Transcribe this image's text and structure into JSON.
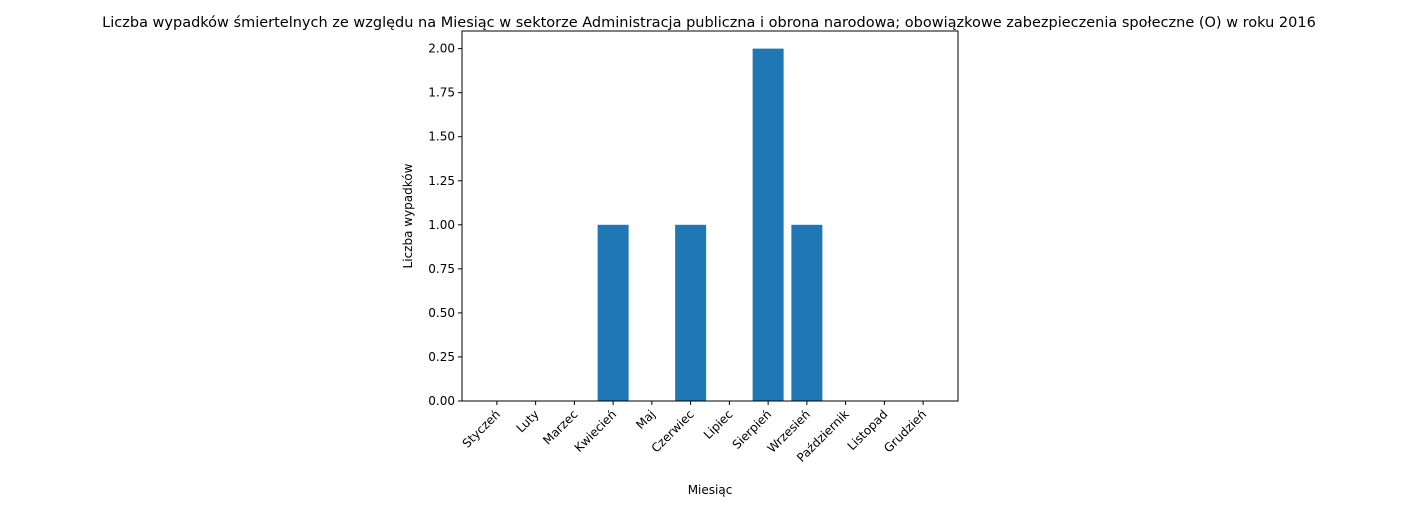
{
  "chart_data": {
    "type": "bar",
    "title": "Liczba wypadków śmiertelnych ze względu na Miesiąc w sektorze Administracja publiczna i obrona narodowa; obowiązkowe zabezpieczenia społeczne (O) w roku 2016",
    "xlabel": "Miesiąc",
    "ylabel": "Liczba wypadków",
    "categories": [
      "Styczeń",
      "Luty",
      "Marzec",
      "Kwiecień",
      "Maj",
      "Czerwiec",
      "Lipiec",
      "Sierpień",
      "Wrzesień",
      "Październik",
      "Listopad",
      "Grudzień"
    ],
    "values": [
      0,
      0,
      0,
      1,
      0,
      1,
      0,
      2,
      1,
      0,
      0,
      0
    ],
    "ylim": [
      0,
      2.1
    ],
    "yticks": [
      "0.00",
      "0.25",
      "0.50",
      "0.75",
      "1.00",
      "1.25",
      "1.50",
      "1.75",
      "2.00"
    ],
    "grid": false,
    "bar_color": "#1f77b4"
  }
}
